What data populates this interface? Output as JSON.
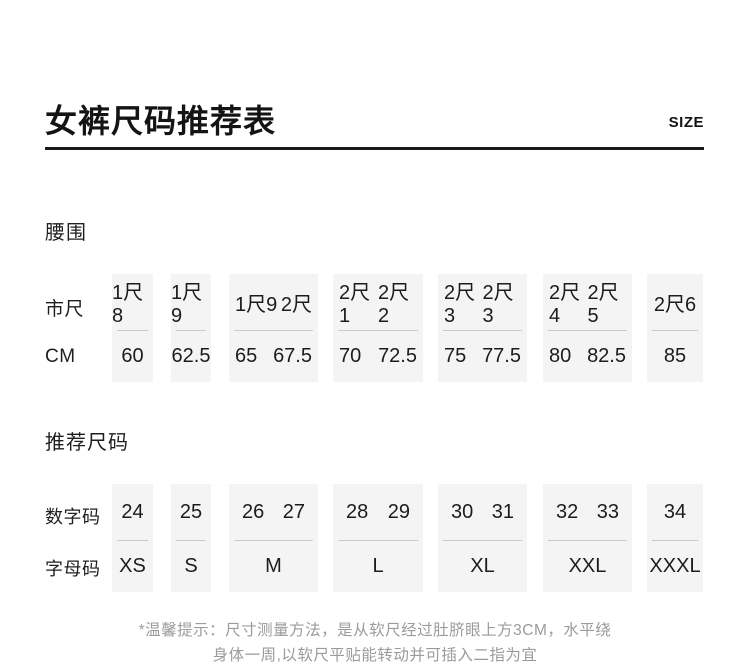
{
  "header": {
    "title": "女裤尺码推荐表",
    "size_label": "SIZE"
  },
  "waist_section": {
    "title": "腰围",
    "row1_label": "市尺",
    "row2_label": "CM",
    "columns": [
      {
        "shichi": [
          "1尺8"
        ],
        "cm": [
          "60"
        ]
      },
      {
        "shichi": [
          "1尺9"
        ],
        "cm": [
          "62.5"
        ]
      },
      {
        "shichi": [
          "1尺9",
          "2尺"
        ],
        "cm": [
          "65",
          "67.5"
        ]
      },
      {
        "shichi": [
          "2尺1",
          "2尺2"
        ],
        "cm": [
          "70",
          "72.5"
        ]
      },
      {
        "shichi": [
          "2尺3",
          "2尺3"
        ],
        "cm": [
          "75",
          "77.5"
        ]
      },
      {
        "shichi": [
          "2尺4",
          "2尺5"
        ],
        "cm": [
          "80",
          "82.5"
        ]
      },
      {
        "shichi": [
          "2尺6"
        ],
        "cm": [
          "85"
        ]
      }
    ]
  },
  "size_section": {
    "title": "推荐尺码",
    "row1_label": "数字码",
    "row2_label": "字母码",
    "columns": [
      {
        "numbers": [
          "24"
        ],
        "letter": "XS"
      },
      {
        "numbers": [
          "25"
        ],
        "letter": "S"
      },
      {
        "numbers": [
          "26",
          "27"
        ],
        "letter": "M"
      },
      {
        "numbers": [
          "28",
          "29"
        ],
        "letter": "L"
      },
      {
        "numbers": [
          "30",
          "31"
        ],
        "letter": "XL"
      },
      {
        "numbers": [
          "32",
          "33"
        ],
        "letter": "XXL"
      },
      {
        "numbers": [
          "34"
        ],
        "letter": "XXXL"
      }
    ]
  },
  "footnote": {
    "line1": "*温馨提示：尺寸测量方法，是从软尺经过肚脐眼上方3CM，水平绕",
    "line2": "身体一周,以软尺平贴能转动并可插入二指为宜"
  },
  "colors": {
    "block_background": "#f4f4f5",
    "block_divider": "#c9c9c9",
    "text_primary": "#1c1c1c",
    "text_muted": "#9b9b9b",
    "title_rule": "#1a1a1a"
  }
}
